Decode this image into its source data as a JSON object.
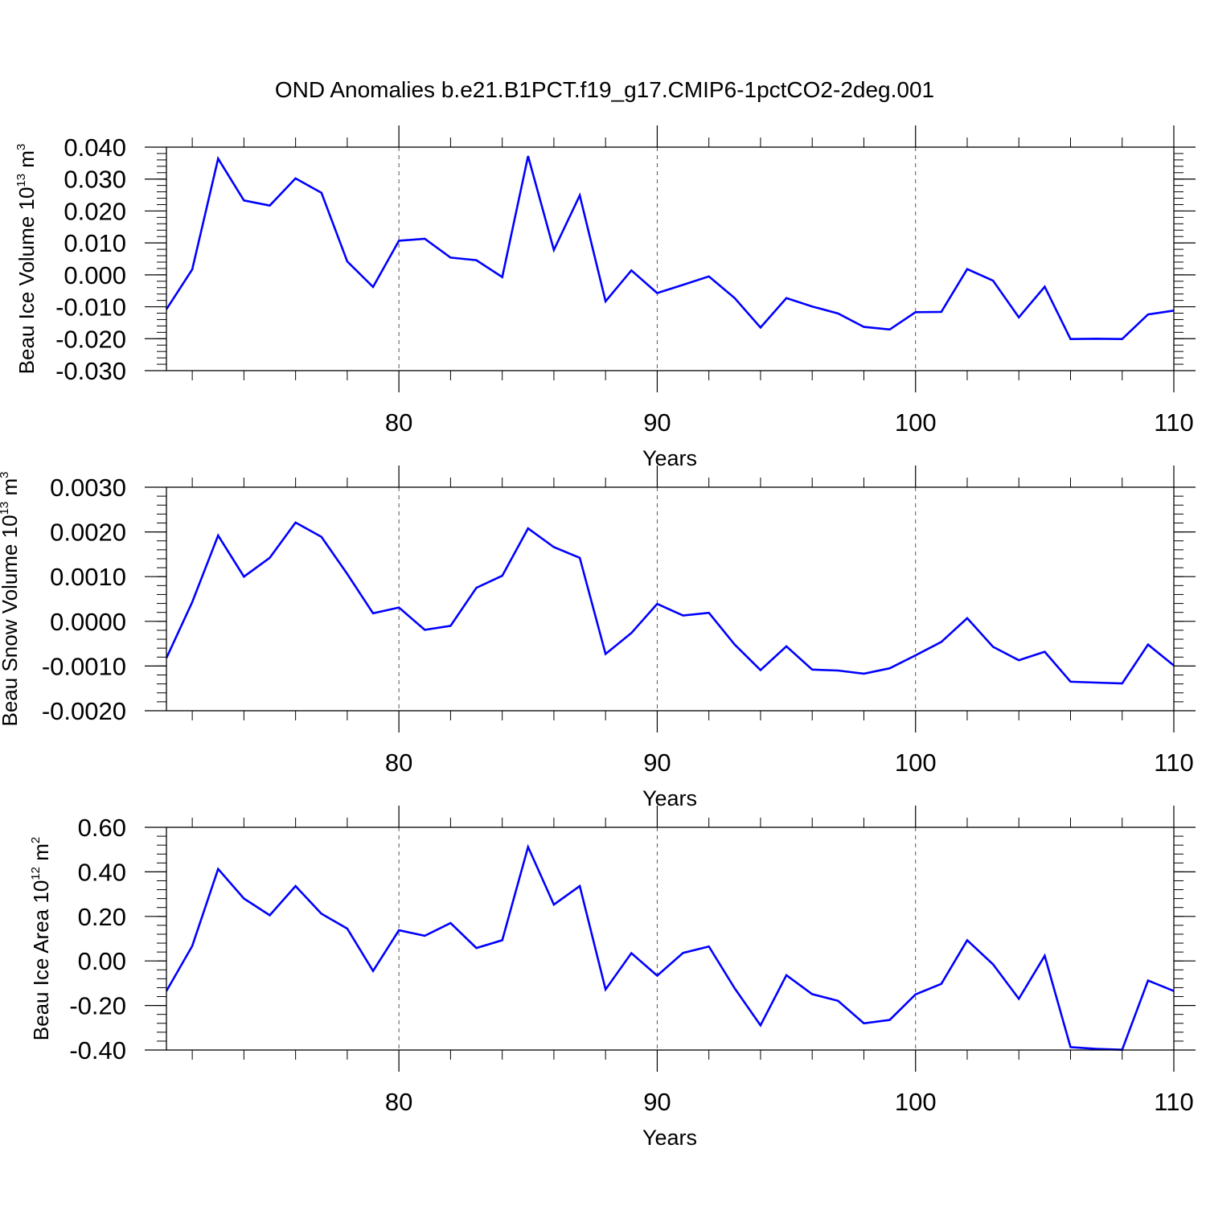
{
  "chart_data": {
    "title": "OND Anomalies b.e21.B1PCT.f19_g17.CMIP6-1pctCO2-2deg.001",
    "type": "line",
    "line_color": "#0000ff",
    "x": [
      71,
      72,
      73,
      74,
      75,
      76,
      77,
      78,
      79,
      80,
      81,
      82,
      83,
      84,
      85,
      86,
      87,
      88,
      89,
      90,
      91,
      92,
      93,
      94,
      95,
      96,
      97,
      98,
      99,
      100,
      101,
      102,
      103,
      104,
      105,
      106,
      107,
      108,
      109,
      110
    ],
    "xlim": [
      71,
      110
    ],
    "xticks": [
      80,
      90,
      100,
      110
    ],
    "xtick_labels": [
      "80",
      "90",
      "100",
      "110"
    ],
    "panels": [
      {
        "ylabel": "Beau Ice Volume 10",
        "ylabel_exp": "13",
        "ylabel_unit": "m",
        "ylabel_unit_exp": "3",
        "xlabel": "Years",
        "ylim": [
          -0.03,
          0.04
        ],
        "yticks": [
          0.04,
          0.03,
          0.02,
          0.01,
          0.0,
          -0.01,
          -0.02,
          -0.03
        ],
        "ytick_labels": [
          "0.040",
          "0.030",
          "0.020",
          "0.010",
          "0.000",
          "-0.010",
          "-0.020",
          "-0.030"
        ],
        "minor_step": 0.002,
        "values": [
          -0.0108,
          0.0017,
          0.0364,
          0.0233,
          0.0217,
          0.0302,
          0.0257,
          0.0042,
          -0.0038,
          0.0107,
          0.0113,
          0.0054,
          0.0046,
          -0.0007,
          0.0372,
          0.0078,
          0.0249,
          -0.0083,
          0.0014,
          -0.0057,
          -0.0031,
          -0.0005,
          -0.0073,
          -0.0165,
          -0.0073,
          -0.0099,
          -0.0121,
          -0.0163,
          -0.0171,
          -0.0117,
          -0.0116,
          0.0018,
          -0.0018,
          -0.0133,
          -0.0037,
          -0.0201,
          -0.02,
          -0.0201,
          -0.0124,
          -0.0112
        ]
      },
      {
        "ylabel": "Beau Snow Volume 10",
        "ylabel_exp": "13",
        "ylabel_unit": "m",
        "ylabel_unit_exp": "3",
        "xlabel": "Years",
        "ylim": [
          -0.002,
          0.003
        ],
        "yticks": [
          0.003,
          0.002,
          0.001,
          0.0,
          -0.001,
          -0.002
        ],
        "ytick_labels": [
          "0.0030",
          "0.0020",
          "0.0010",
          "0.0000",
          "-0.0010",
          "-0.0020"
        ],
        "minor_step": 0.0002,
        "values": [
          -0.00082,
          0.00043,
          0.00192,
          0.001,
          0.00142,
          0.00221,
          0.00189,
          0.00106,
          0.00018,
          0.00031,
          -0.00019,
          -0.0001,
          0.00075,
          0.00102,
          0.00208,
          0.00166,
          0.00142,
          -0.00073,
          -0.00026,
          0.00039,
          0.00013,
          0.00019,
          -0.00052,
          -0.00109,
          -0.00056,
          -0.00108,
          -0.0011,
          -0.00117,
          -0.00105,
          -0.00076,
          -0.00046,
          7e-05,
          -0.00057,
          -0.00087,
          -0.00068,
          -0.00135,
          -0.00137,
          -0.00139,
          -0.00052,
          -0.00099
        ]
      },
      {
        "ylabel": "Beau Ice Area 10",
        "ylabel_exp": "12",
        "ylabel_unit": "m",
        "ylabel_unit_exp": "2",
        "xlabel": "Years",
        "ylim": [
          -0.4,
          0.6
        ],
        "yticks": [
          0.6,
          0.4,
          0.2,
          0.0,
          -0.2,
          -0.4
        ],
        "ytick_labels": [
          "0.60",
          "0.40",
          "0.20",
          "0.00",
          "-0.20",
          "-0.40"
        ],
        "minor_step": 0.04,
        "values": [
          -0.135,
          0.067,
          0.413,
          0.28,
          0.205,
          0.336,
          0.212,
          0.145,
          -0.045,
          0.138,
          0.113,
          0.17,
          0.058,
          0.093,
          0.512,
          0.253,
          0.336,
          -0.128,
          0.035,
          -0.066,
          0.036,
          0.065,
          -0.123,
          -0.289,
          -0.064,
          -0.149,
          -0.179,
          -0.28,
          -0.265,
          -0.15,
          -0.103,
          0.093,
          -0.015,
          -0.17,
          0.023,
          -0.387,
          -0.395,
          -0.399,
          -0.088,
          -0.135
        ]
      }
    ]
  }
}
